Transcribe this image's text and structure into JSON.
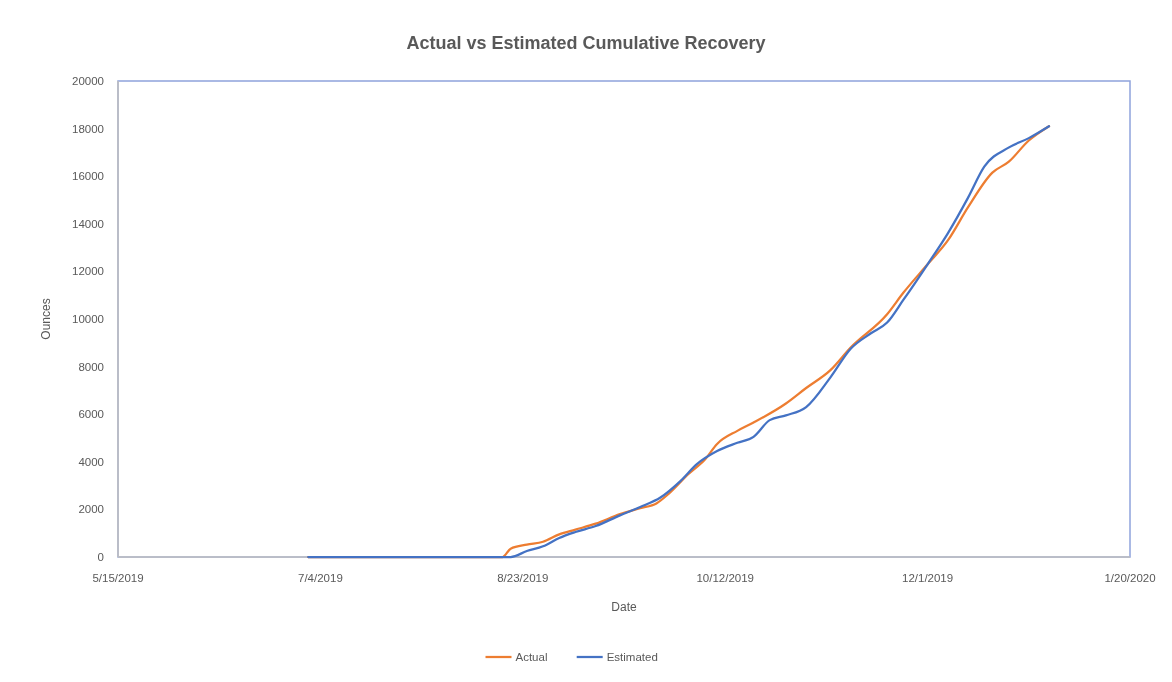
{
  "chart_data": {
    "type": "line",
    "title": "Actual vs Estimated Cumulative Recovery",
    "xlabel": "Date",
    "ylabel": "Ounces",
    "xlim": [
      "2019-05-15",
      "2020-01-20"
    ],
    "xticks": [
      {
        "value": "2019-05-15",
        "label": "5/15/2019"
      },
      {
        "value": "2019-07-04",
        "label": "7/4/2019"
      },
      {
        "value": "2019-08-23",
        "label": "8/23/2019"
      },
      {
        "value": "2019-10-12",
        "label": "10/12/2019"
      },
      {
        "value": "2019-12-01",
        "label": "12/1/2019"
      },
      {
        "value": "2020-01-20",
        "label": "1/20/2020"
      }
    ],
    "ylim": [
      0,
      20000
    ],
    "yticks": [
      0,
      2000,
      4000,
      6000,
      8000,
      10000,
      12000,
      14000,
      16000,
      18000,
      20000
    ],
    "grid": false,
    "legend": "bottom",
    "line_style": "solid",
    "marker": "none",
    "series": [
      {
        "name": "Actual",
        "color": "#ed7d31",
        "x": [
          "2019-07-01",
          "2019-08-18",
          "2019-08-20",
          "2019-08-24",
          "2019-08-28",
          "2019-09-01",
          "2019-09-05",
          "2019-09-10",
          "2019-09-16",
          "2019-09-21",
          "2019-09-25",
          "2019-09-28",
          "2019-10-03",
          "2019-10-07",
          "2019-10-10",
          "2019-10-15",
          "2019-10-19",
          "2019-10-27",
          "2019-11-01",
          "2019-11-07",
          "2019-11-12",
          "2019-11-21",
          "2019-11-25",
          "2019-12-01",
          "2019-12-06",
          "2019-12-11",
          "2019-12-17",
          "2019-12-21",
          "2019-12-26",
          "2019-12-31"
        ],
        "values": [
          0,
          0,
          350,
          520,
          640,
          950,
          1150,
          1400,
          1800,
          2050,
          2250,
          2650,
          3500,
          4100,
          4750,
          5300,
          5650,
          6450,
          7100,
          7850,
          8800,
          10200,
          11100,
          12300,
          13300,
          14700,
          16150,
          16600,
          17500,
          18100
        ]
      },
      {
        "name": "Estimated",
        "color": "#4472c4",
        "x": [
          "2019-07-01",
          "2019-08-20",
          "2019-08-24",
          "2019-08-28",
          "2019-09-01",
          "2019-09-05",
          "2019-09-10",
          "2019-09-16",
          "2019-09-21",
          "2019-09-26",
          "2019-10-01",
          "2019-10-05",
          "2019-10-10",
          "2019-10-15",
          "2019-10-19",
          "2019-10-23",
          "2019-10-27",
          "2019-11-01",
          "2019-11-07",
          "2019-11-12",
          "2019-11-17",
          "2019-11-21",
          "2019-11-25",
          "2019-12-01",
          "2019-12-06",
          "2019-12-11",
          "2019-12-15",
          "2019-12-21",
          "2019-12-26",
          "2019-12-31"
        ],
        "values": [
          0,
          0,
          250,
          450,
          800,
          1050,
          1300,
          1750,
          2100,
          2500,
          3200,
          3900,
          4450,
          4800,
          5050,
          5750,
          5950,
          6300,
          7550,
          8750,
          9400,
          9850,
          10800,
          12300,
          13600,
          15100,
          16400,
          17200,
          17600,
          18100
        ]
      }
    ]
  }
}
